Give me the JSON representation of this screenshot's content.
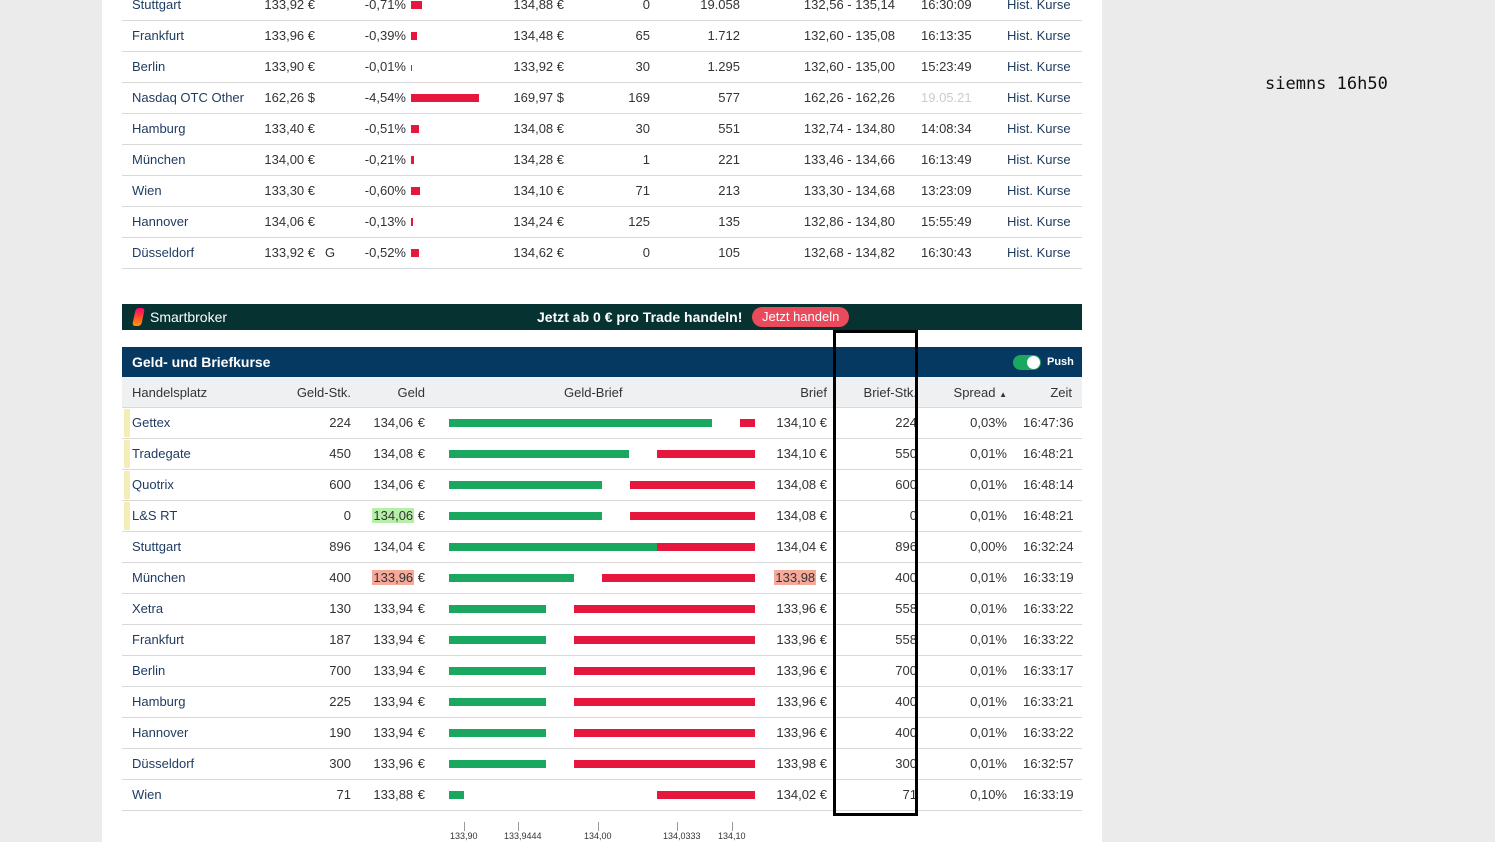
{
  "top_table": {
    "link_label": "Hist. Kurse",
    "rows": [
      {
        "place": "Stuttgart",
        "price": "133,92 €",
        "flag": "",
        "change": "-0,71%",
        "change_value": -0.71,
        "prev": "134,88 €",
        "vol1": "0",
        "vol2": "19.058",
        "range": "132,56 - 135,14",
        "time": "16:30:09",
        "time_muted": false
      },
      {
        "place": "Frankfurt",
        "price": "133,96 €",
        "flag": "",
        "change": "-0,39%",
        "change_value": -0.39,
        "prev": "134,48 €",
        "vol1": "65",
        "vol2": "1.712",
        "range": "132,60 - 135,08",
        "time": "16:13:35",
        "time_muted": false
      },
      {
        "place": "Berlin",
        "price": "133,90 €",
        "flag": "",
        "change": "-0,01%",
        "change_value": -0.01,
        "prev": "133,92 €",
        "vol1": "30",
        "vol2": "1.295",
        "range": "132,60 - 135,00",
        "time": "15:23:49",
        "time_muted": false
      },
      {
        "place": "Nasdaq OTC Other",
        "price": "162,26 $",
        "flag": "",
        "change": "-4,54%",
        "change_value": -4.54,
        "prev": "169,97 $",
        "vol1": "169",
        "vol2": "577",
        "range": "162,26 - 162,26",
        "time": "19.05.21",
        "time_muted": true
      },
      {
        "place": "Hamburg",
        "price": "133,40 €",
        "flag": "",
        "change": "-0,51%",
        "change_value": -0.51,
        "prev": "134,08 €",
        "vol1": "30",
        "vol2": "551",
        "range": "132,74 - 134,80",
        "time": "14:08:34",
        "time_muted": false
      },
      {
        "place": "München",
        "price": "134,00 €",
        "flag": "",
        "change": "-0,21%",
        "change_value": -0.21,
        "prev": "134,28 €",
        "vol1": "1",
        "vol2": "221",
        "range": "133,46 - 134,66",
        "time": "16:13:49",
        "time_muted": false
      },
      {
        "place": "Wien",
        "price": "133,30 €",
        "flag": "",
        "change": "-0,60%",
        "change_value": -0.6,
        "prev": "134,10 €",
        "vol1": "71",
        "vol2": "213",
        "range": "133,30 - 134,68",
        "time": "13:23:09",
        "time_muted": false
      },
      {
        "place": "Hannover",
        "price": "134,06 €",
        "flag": "",
        "change": "-0,13%",
        "change_value": -0.13,
        "prev": "134,24 €",
        "vol1": "125",
        "vol2": "135",
        "range": "132,86 - 134,80",
        "time": "15:55:49",
        "time_muted": false
      },
      {
        "place": "Düsseldorf",
        "price": "133,92 €",
        "flag": "G",
        "change": "-0,52%",
        "change_value": -0.52,
        "prev": "134,62 €",
        "vol1": "0",
        "vol2": "105",
        "range": "132,68 - 134,82",
        "time": "16:30:43",
        "time_muted": false
      }
    ]
  },
  "promo": {
    "brand": "Smartbroker",
    "text": "Jetzt ab 0 € pro Trade handeln!",
    "button": "Jetzt handeln"
  },
  "bid_ask": {
    "title": "Geld- und Briefkurse",
    "push_label": "Push",
    "push_on": true,
    "columns": {
      "place": "Handelsplatz",
      "bid_qty": "Geld-Stk.",
      "bid": "Geld",
      "bar": "Geld-Brief",
      "ask": "Brief",
      "ask_qty": "Brief-Stk.",
      "spread": "Spread",
      "time": "Zeit"
    },
    "sort": "spread-ascending",
    "rows": [
      {
        "place": "Gettex",
        "bid_qty": "224",
        "bid": "134,06",
        "ask": "134,10 €",
        "ask_qty": "224",
        "spread": "0,03%",
        "time": "16:47:36",
        "marked": true,
        "bid_hl": "",
        "ask_hl": ""
      },
      {
        "place": "Tradegate",
        "bid_qty": "450",
        "bid": "134,08",
        "ask": "134,10 €",
        "ask_qty": "550",
        "spread": "0,01%",
        "time": "16:48:21",
        "marked": true,
        "bid_hl": "",
        "ask_hl": ""
      },
      {
        "place": "Quotrix",
        "bid_qty": "600",
        "bid": "134,06",
        "ask": "134,08 €",
        "ask_qty": "600",
        "spread": "0,01%",
        "time": "16:48:14",
        "marked": true,
        "bid_hl": "",
        "ask_hl": ""
      },
      {
        "place": "L&S RT",
        "bid_qty": "0",
        "bid": "134,06",
        "ask": "134,08 €",
        "ask_qty": "0",
        "spread": "0,01%",
        "time": "16:48:21",
        "marked": true,
        "bid_hl": "up",
        "ask_hl": ""
      },
      {
        "place": "Stuttgart",
        "bid_qty": "896",
        "bid": "134,04",
        "ask": "134,04 €",
        "ask_qty": "896",
        "spread": "0,00%",
        "time": "16:32:24",
        "marked": false,
        "bid_hl": "",
        "ask_hl": ""
      },
      {
        "place": "München",
        "bid_qty": "400",
        "bid": "133,96",
        "ask": "133,98",
        "ask_qty": "400",
        "spread": "0,01%",
        "time": "16:33:19",
        "marked": false,
        "bid_hl": "down",
        "ask_hl": "down"
      },
      {
        "place": "Xetra",
        "bid_qty": "130",
        "bid": "133,94",
        "ask": "133,96 €",
        "ask_qty": "558",
        "spread": "0,01%",
        "time": "16:33:22",
        "marked": false,
        "bid_hl": "",
        "ask_hl": ""
      },
      {
        "place": "Frankfurt",
        "bid_qty": "187",
        "bid": "133,94",
        "ask": "133,96 €",
        "ask_qty": "558",
        "spread": "0,01%",
        "time": "16:33:22",
        "marked": false,
        "bid_hl": "",
        "ask_hl": ""
      },
      {
        "place": "Berlin",
        "bid_qty": "700",
        "bid": "133,94",
        "ask": "133,96 €",
        "ask_qty": "700",
        "spread": "0,01%",
        "time": "16:33:17",
        "marked": false,
        "bid_hl": "",
        "ask_hl": ""
      },
      {
        "place": "Hamburg",
        "bid_qty": "225",
        "bid": "133,94",
        "ask": "133,96 €",
        "ask_qty": "400",
        "spread": "0,01%",
        "time": "16:33:21",
        "marked": false,
        "bid_hl": "",
        "ask_hl": ""
      },
      {
        "place": "Hannover",
        "bid_qty": "190",
        "bid": "133,94",
        "ask": "133,96 €",
        "ask_qty": "400",
        "spread": "0,01%",
        "time": "16:33:22",
        "marked": false,
        "bid_hl": "",
        "ask_hl": ""
      },
      {
        "place": "Düsseldorf",
        "bid_qty": "300",
        "bid": "133,96",
        "ask": "133,98 €",
        "ask_qty": "300",
        "spread": "0,01%",
        "time": "16:32:57",
        "marked": false,
        "bid_hl": "",
        "ask_hl": ""
      },
      {
        "place": "Wien",
        "bid_qty": "71",
        "bid": "133,88",
        "ask": "134,02 €",
        "ask_qty": "71",
        "spread": "0,10%",
        "time": "16:33:19",
        "marked": false,
        "bid_hl": "",
        "ask_hl": ""
      }
    ],
    "axis_ticks": [
      "133,90",
      "133,9444",
      "134,00",
      "134,0333",
      "134,10"
    ]
  },
  "colors": {
    "bid": "#1aa760",
    "ask": "#e5173f",
    "header": "#063962",
    "promo": "#063232",
    "up_hl": "#b6f0a8",
    "down_hl": "#f5a99a"
  },
  "annotation": "siemns 16h50"
}
